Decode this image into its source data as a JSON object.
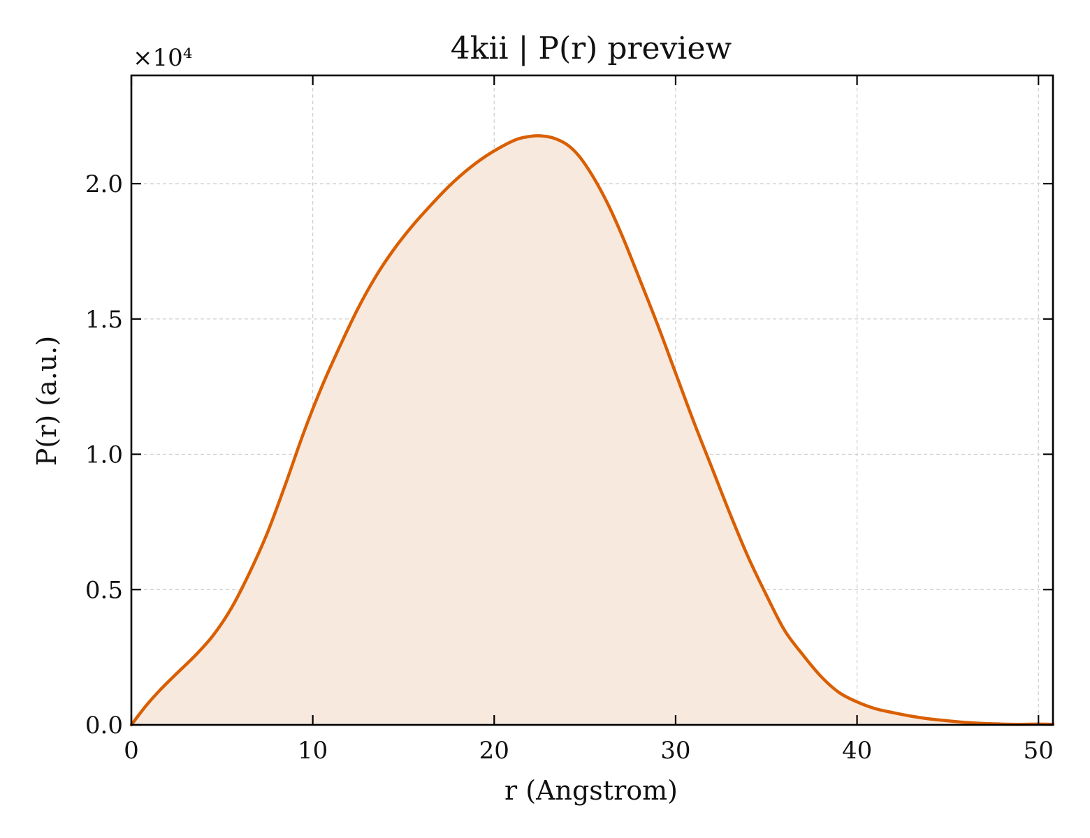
{
  "chart_data": {
    "type": "area",
    "title": "4kii | P(r) preview",
    "xlabel": "r (Angstrom)",
    "ylabel": "P(r) (a.u.)",
    "y_multiplier_label": "×10⁴",
    "y_scale_factor": 10000,
    "xlim": [
      0,
      50.8
    ],
    "ylim": [
      0,
      24000
    ],
    "x_ticks": [
      {
        "value": 0,
        "label": "0"
      },
      {
        "value": 10,
        "label": "10"
      },
      {
        "value": 20,
        "label": "20"
      },
      {
        "value": 30,
        "label": "30"
      },
      {
        "value": 40,
        "label": "40"
      },
      {
        "value": 50,
        "label": "50"
      }
    ],
    "y_ticks": [
      {
        "value": 0,
        "label": "0.0"
      },
      {
        "value": 5000,
        "label": "0.5"
      },
      {
        "value": 10000,
        "label": "1.0"
      },
      {
        "value": 15000,
        "label": "1.5"
      },
      {
        "value": 20000,
        "label": "2.0"
      }
    ],
    "grid": true,
    "legend": "none",
    "series": [
      {
        "color": "#d95f02",
        "fill_color": "#f8e9df",
        "x": [
          0,
          0.8,
          1.6,
          2.5,
          3.5,
          4.5,
          5.5,
          6.5,
          7.5,
          8.5,
          9.5,
          10.5,
          11.5,
          12.5,
          13.5,
          14.5,
          15.5,
          16.5,
          17.5,
          18.5,
          19.5,
          20.5,
          21.3,
          22.0,
          22.5,
          23.2,
          24.0,
          24.7,
          25.5,
          26.3,
          27.1,
          28.0,
          29.0,
          30.0,
          31.0,
          32.0,
          33.0,
          34.0,
          35.0,
          36.0,
          37.0,
          38.0,
          39.0,
          40.0,
          41.0,
          42.0,
          43.0,
          44.0,
          45.0,
          46.0,
          47.0,
          48.0,
          49.0,
          50.0,
          50.8
        ],
        "y": [
          0,
          700,
          1300,
          1900,
          2550,
          3300,
          4300,
          5600,
          7100,
          8900,
          10800,
          12500,
          14000,
          15400,
          16600,
          17600,
          18450,
          19200,
          19900,
          20500,
          21000,
          21400,
          21650,
          21750,
          21770,
          21700,
          21450,
          21000,
          20200,
          19200,
          18000,
          16500,
          14800,
          13000,
          11200,
          9500,
          7800,
          6200,
          4800,
          3500,
          2600,
          1800,
          1200,
          850,
          600,
          450,
          320,
          220,
          150,
          90,
          50,
          30,
          20,
          30,
          20
        ]
      }
    ]
  }
}
